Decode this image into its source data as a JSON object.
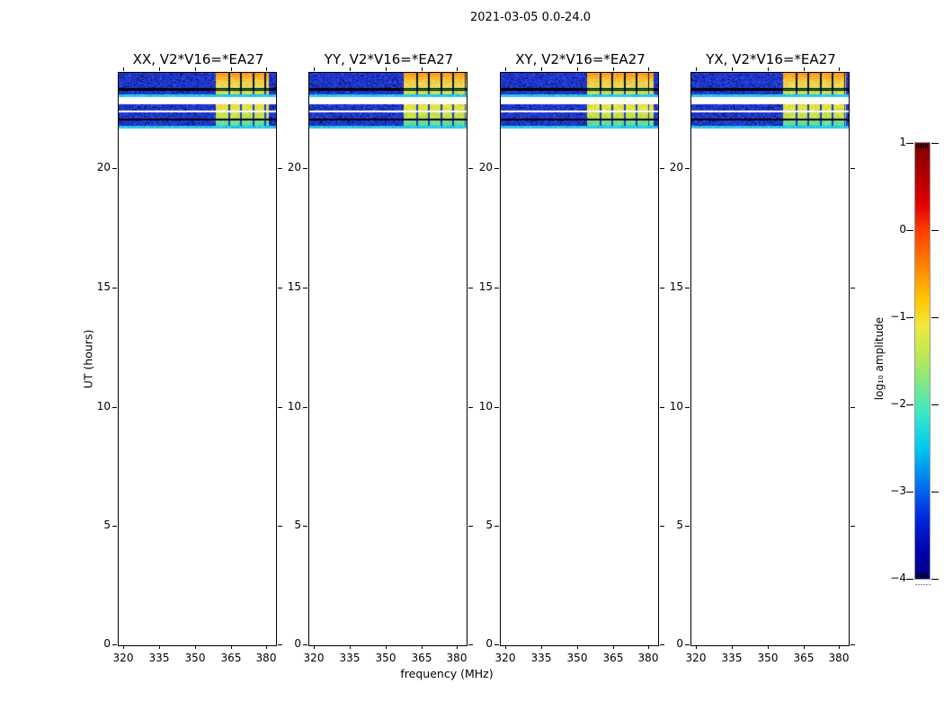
{
  "figure_title": "2021-03-05 0.0-24.0",
  "axes": {
    "x_label": "frequency (MHz)",
    "y_label": "UT (hours)",
    "x_tick_labels": [
      "320",
      "335",
      "350",
      "365",
      "380"
    ],
    "y_tick_labels": [
      "0",
      "5",
      "10",
      "15",
      "20"
    ]
  },
  "panels": [
    {
      "id": "xx",
      "title": "XX, V2*V16=*EA27",
      "bright_start": 0.615,
      "bright_end": 0.955
    },
    {
      "id": "yy",
      "title": "YY, V2*V16=*EA27",
      "bright_start": 0.6,
      "bright_end": 1.0
    },
    {
      "id": "xy",
      "title": "XY, V2*V16=*EA27",
      "bright_start": 0.55,
      "bright_end": 0.97
    },
    {
      "id": "yx",
      "title": "YX, V2*V16=*EA27",
      "bright_start": 0.58,
      "bright_end": 0.985
    }
  ],
  "colorbar": {
    "label": "log₁₀ amplitude",
    "tick_labels": [
      "1",
      "0",
      "−1",
      "−2",
      "−3",
      "−4"
    ]
  },
  "chart_data": {
    "type": "heatmap",
    "title": "2021-03-05 0.0-24.0",
    "xlabel": "frequency (MHz)",
    "ylabel": "UT (hours)",
    "xlim": [
      318,
      384
    ],
    "ylim": [
      0,
      24
    ],
    "x_ticks": [
      320,
      335,
      350,
      365,
      380
    ],
    "y_ticks": [
      0,
      5,
      10,
      15,
      20
    ],
    "panels": [
      "XX, V2*V16=*EA27",
      "YY, V2*V16=*EA27",
      "XY, V2*V16=*EA27",
      "YX, V2*V16=*EA27"
    ],
    "data_extent_ut": [
      21.67,
      24.0
    ],
    "bright_patch_freq_range_mhz": [
      358,
      381
    ],
    "bands": [
      {
        "ut": [
          23.36,
          24.0
        ],
        "kind": "noise",
        "bright": "orange"
      },
      {
        "ut": [
          23.25,
          23.36
        ],
        "kind": "black",
        "bright": "darkgreen"
      },
      {
        "ut": [
          23.1,
          23.25
        ],
        "kind": "noise",
        "bright": "yellowgreen"
      },
      {
        "ut": [
          22.99,
          23.1
        ],
        "kind": "cyan",
        "bright": null
      },
      {
        "ut": [
          22.69,
          22.99
        ],
        "kind": "white",
        "bright": null
      },
      {
        "ut": [
          22.42,
          22.69
        ],
        "kind": "noise",
        "bright": "yellow"
      },
      {
        "ut": [
          22.35,
          22.42
        ],
        "kind": "white",
        "bright": null
      },
      {
        "ut": [
          22.08,
          22.35
        ],
        "kind": "noise",
        "bright": "yellowgreen"
      },
      {
        "ut": [
          22.01,
          22.08
        ],
        "kind": "black",
        "bright": null
      },
      {
        "ut": [
          21.78,
          22.01
        ],
        "kind": "noise",
        "bright": "green"
      },
      {
        "ut": [
          21.67,
          21.78
        ],
        "kind": "cyan",
        "bright": null
      }
    ],
    "colorbar": {
      "label": "log10 amplitude",
      "ticks": [
        1,
        0,
        -1,
        -2,
        -3,
        -4
      ],
      "colormap": "jet",
      "gradient": [
        [
          0.0,
          "#7a0000"
        ],
        [
          0.08,
          "#b40000"
        ],
        [
          0.14,
          "#e00000"
        ],
        [
          0.2,
          "#ff3c00"
        ],
        [
          0.28,
          "#ff8200"
        ],
        [
          0.36,
          "#ffc800"
        ],
        [
          0.42,
          "#f0e83c"
        ],
        [
          0.5,
          "#b4e85a"
        ],
        [
          0.56,
          "#78e88c"
        ],
        [
          0.62,
          "#3ce8c8"
        ],
        [
          0.7,
          "#00c8f0"
        ],
        [
          0.78,
          "#0078f0"
        ],
        [
          0.86,
          "#0028e0"
        ],
        [
          0.94,
          "#0000aa"
        ],
        [
          1.0,
          "#000082"
        ]
      ]
    },
    "colors": {
      "noise_blue_dark": "#0a14b4",
      "noise_blue_light": "#2a48e6",
      "cyan_line": "#28c8eb",
      "bright_orange": "#ff9614",
      "bright_orange_mid": "#ffc83c",
      "bright_orange_low": "#dce26e",
      "bright_yellow": "#e8e246",
      "bright_yellowgreen": "#c8e250",
      "bright_green": "#64e096",
      "bright_green_low": "#50dcb4",
      "bright_darkgreen": "#2a8c46",
      "notch_dark": "#001438",
      "notch_blue": "#1440cc",
      "black": "#000000",
      "white": "#ffffff"
    }
  }
}
